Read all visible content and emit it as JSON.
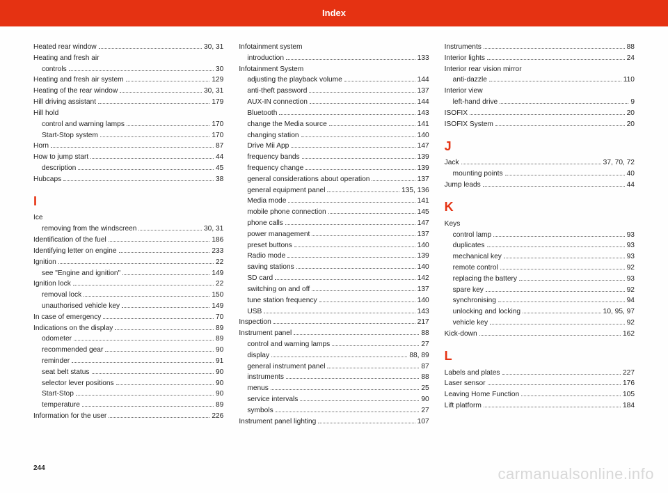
{
  "accent_color": "#e53212",
  "header_title": "Index",
  "watermark": "carmanualsonline.info",
  "page_number": "244",
  "columns": [
    {
      "entries": [
        {
          "label": "Heated rear window",
          "page": "30, 31"
        },
        {
          "label": "Heating and fresh air"
        },
        {
          "label": "controls",
          "page": "30",
          "sub": true
        },
        {
          "label": "Heating and fresh air system",
          "page": "129"
        },
        {
          "label": "Heating of the rear window",
          "page": "30, 31"
        },
        {
          "label": "Hill driving assistant",
          "page": "179"
        },
        {
          "label": "Hill hold"
        },
        {
          "label": "control and warning lamps",
          "page": "170",
          "sub": true
        },
        {
          "label": "Start-Stop system",
          "page": "170",
          "sub": true
        },
        {
          "label": "Horn",
          "page": "87"
        },
        {
          "label": "How to jump start",
          "page": "44"
        },
        {
          "label": "description",
          "page": "45",
          "sub": true
        },
        {
          "label": "Hubcaps",
          "page": "38"
        },
        {
          "letter": "I"
        },
        {
          "label": "Ice"
        },
        {
          "label": "removing from the windscreen",
          "page": "30, 31",
          "sub": true
        },
        {
          "label": "Identification of the fuel",
          "page": "186"
        },
        {
          "label": "Identifying letter on engine",
          "page": "233"
        },
        {
          "label": "Ignition",
          "page": "22"
        },
        {
          "label": "see \"Engine and ignition\"",
          "page": "149",
          "sub": true
        },
        {
          "label": "Ignition lock",
          "page": "22"
        },
        {
          "label": "removal lock",
          "page": "150",
          "sub": true
        },
        {
          "label": "unauthorised vehicle key",
          "page": "149",
          "sub": true
        },
        {
          "label": "In case of emergency",
          "page": "70"
        },
        {
          "label": "Indications on the display",
          "page": "89"
        },
        {
          "label": "odometer",
          "page": "89",
          "sub": true
        },
        {
          "label": "recommended gear",
          "page": "90",
          "sub": true
        },
        {
          "label": "reminder",
          "page": "91",
          "sub": true
        },
        {
          "label": "seat belt status",
          "page": "90",
          "sub": true
        },
        {
          "label": "selector lever positions",
          "page": "90",
          "sub": true
        },
        {
          "label": "Start-Stop",
          "page": "90",
          "sub": true
        },
        {
          "label": "temperature",
          "page": "89",
          "sub": true
        },
        {
          "label": "Information for the user",
          "page": "226"
        }
      ]
    },
    {
      "entries": [
        {
          "label": "Infotainment system"
        },
        {
          "label": "introduction",
          "page": "133",
          "sub": true
        },
        {
          "label": "Infotainment System"
        },
        {
          "label": "adjusting the playback volume",
          "page": "144",
          "sub": true
        },
        {
          "label": "anti-theft password",
          "page": "137",
          "sub": true
        },
        {
          "label": "AUX-IN connection",
          "page": "144",
          "sub": true
        },
        {
          "label": "Bluetooth",
          "page": "143",
          "sub": true
        },
        {
          "label": "change the Media source",
          "page": "141",
          "sub": true
        },
        {
          "label": "changing station",
          "page": "140",
          "sub": true
        },
        {
          "label": "Drive Mii App",
          "page": "147",
          "sub": true
        },
        {
          "label": "frequency bands",
          "page": "139",
          "sub": true
        },
        {
          "label": "frequency change",
          "page": "139",
          "sub": true
        },
        {
          "label": "general considerations about operation",
          "page": "137",
          "sub": true
        },
        {
          "label": "general equipment panel",
          "page": "135, 136",
          "sub": true
        },
        {
          "label": "Media mode",
          "page": "141",
          "sub": true
        },
        {
          "label": "mobile phone connection",
          "page": "145",
          "sub": true
        },
        {
          "label": "phone calls",
          "page": "147",
          "sub": true
        },
        {
          "label": "power management",
          "page": "137",
          "sub": true
        },
        {
          "label": "preset buttons",
          "page": "140",
          "sub": true
        },
        {
          "label": "Radio mode",
          "page": "139",
          "sub": true
        },
        {
          "label": "saving stations",
          "page": "140",
          "sub": true
        },
        {
          "label": "SD card",
          "page": "142",
          "sub": true
        },
        {
          "label": "switching on and off",
          "page": "137",
          "sub": true
        },
        {
          "label": "tune station frequency",
          "page": "140",
          "sub": true
        },
        {
          "label": "USB",
          "page": "143",
          "sub": true
        },
        {
          "label": "Inspection",
          "page": "217"
        },
        {
          "label": "Instrument panel",
          "page": "88"
        },
        {
          "label": "control and warning lamps",
          "page": "27",
          "sub": true
        },
        {
          "label": "display",
          "page": "88, 89",
          "sub": true
        },
        {
          "label": "general instrument panel",
          "page": "87",
          "sub": true
        },
        {
          "label": "instruments",
          "page": "88",
          "sub": true
        },
        {
          "label": "menus",
          "page": "25",
          "sub": true
        },
        {
          "label": "service intervals",
          "page": "90",
          "sub": true
        },
        {
          "label": "symbols",
          "page": "27",
          "sub": true
        },
        {
          "label": "Instrument panel lighting",
          "page": "107"
        }
      ]
    },
    {
      "entries": [
        {
          "label": "Instruments",
          "page": "88"
        },
        {
          "label": "Interior lights",
          "page": "24"
        },
        {
          "label": "Interior rear vision mirror"
        },
        {
          "label": "anti-dazzle",
          "page": "110",
          "sub": true
        },
        {
          "label": "Interior view"
        },
        {
          "label": "left-hand drive",
          "page": "9",
          "sub": true
        },
        {
          "label": "ISOFIX",
          "page": "20"
        },
        {
          "label": "ISOFIX System",
          "page": "20"
        },
        {
          "letter": "J"
        },
        {
          "label": "Jack",
          "page": "37, 70, 72"
        },
        {
          "label": "mounting points",
          "page": "40",
          "sub": true
        },
        {
          "label": "Jump leads",
          "page": "44"
        },
        {
          "letter": "K"
        },
        {
          "label": "Keys"
        },
        {
          "label": "control lamp",
          "page": "93",
          "sub": true
        },
        {
          "label": "duplicates",
          "page": "93",
          "sub": true
        },
        {
          "label": "mechanical key",
          "page": "93",
          "sub": true
        },
        {
          "label": "remote control",
          "page": "92",
          "sub": true
        },
        {
          "label": "replacing the battery",
          "page": "93",
          "sub": true
        },
        {
          "label": "spare key",
          "page": "92",
          "sub": true
        },
        {
          "label": "synchronising",
          "page": "94",
          "sub": true
        },
        {
          "label": "unlocking and locking",
          "page": "10, 95, 97",
          "sub": true
        },
        {
          "label": "vehicle key",
          "page": "92",
          "sub": true
        },
        {
          "label": "Kick-down",
          "page": "162"
        },
        {
          "letter": "L"
        },
        {
          "label": "Labels and plates",
          "page": "227"
        },
        {
          "label": "Laser sensor",
          "page": "176"
        },
        {
          "label": "Leaving Home Function",
          "page": "105"
        },
        {
          "label": "Lift platform",
          "page": "184"
        }
      ]
    }
  ]
}
